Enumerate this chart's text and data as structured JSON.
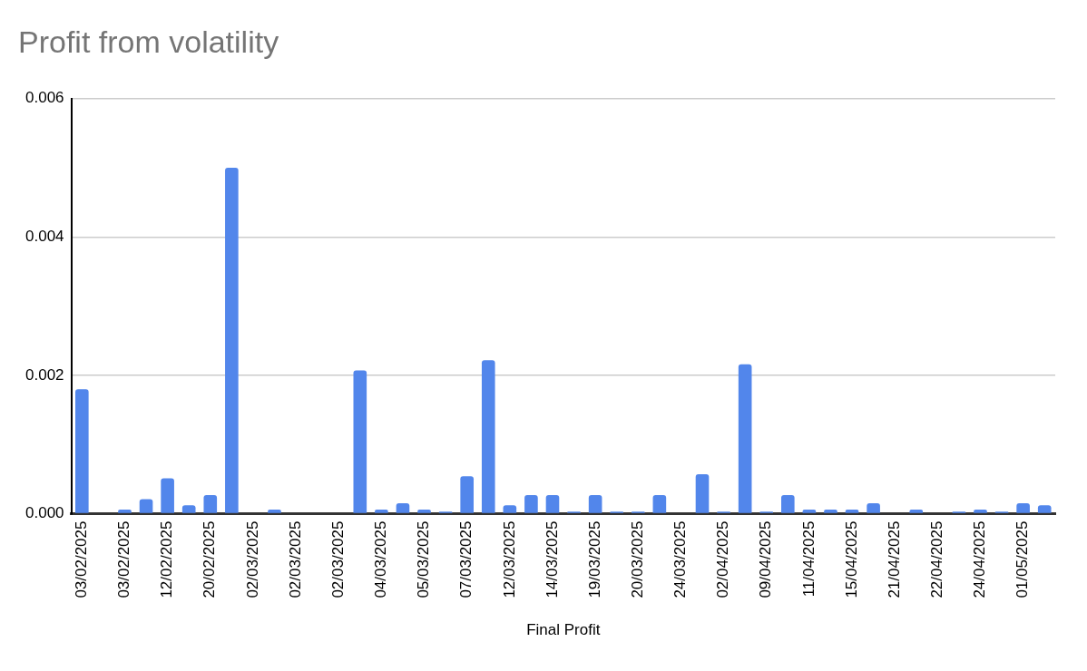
{
  "chart_data": {
    "type": "bar",
    "title": "Profit from volatility",
    "xlabel": "Final Profit",
    "categories": [
      "03/02/2025",
      null,
      "03/02/2025",
      null,
      "12/02/2025",
      null,
      "20/02/2025",
      null,
      "02/03/2025",
      null,
      "02/03/2025",
      null,
      "02/03/2025",
      null,
      "04/03/2025",
      null,
      "05/03/2025",
      null,
      "07/03/2025",
      null,
      "12/03/2025",
      null,
      "14/03/2025",
      null,
      "19/03/2025",
      null,
      "20/03/2025",
      null,
      "24/03/2025",
      null,
      "02/04/2025",
      null,
      "09/04/2025",
      null,
      "11/04/2025",
      null,
      "15/04/2025",
      null,
      "21/04/2025",
      null,
      "22/04/2025",
      null,
      "24/04/2025",
      null,
      "01/05/2025",
      null
    ],
    "values": [
      0.0018,
      0,
      6e-05,
      0.00021,
      0.00051,
      0.00012,
      0.00027,
      0.005,
      0,
      6e-05,
      0,
      0,
      0,
      0.00207,
      6e-05,
      0.00015,
      6e-05,
      3e-05,
      0.00054,
      0.00222,
      0.00012,
      0.00027,
      0.00027,
      3e-05,
      0.00027,
      3e-05,
      3e-05,
      0.00027,
      0,
      0.00057,
      3e-05,
      0.00216,
      3e-05,
      0.00027,
      6e-05,
      6e-05,
      6e-05,
      0.00015,
      0,
      6e-05,
      0,
      3e-05,
      6e-05,
      3e-05,
      0.00015,
      0.00012
    ],
    "color": "#5286eb",
    "ylim": [
      0,
      0.006
    ],
    "yticks": [
      {
        "value": 0,
        "label": "0.000"
      },
      {
        "value": 0.002,
        "label": "0.002"
      },
      {
        "value": 0.004,
        "label": "0.004"
      },
      {
        "value": 0.006,
        "label": "0.006"
      }
    ],
    "grid": "y"
  }
}
